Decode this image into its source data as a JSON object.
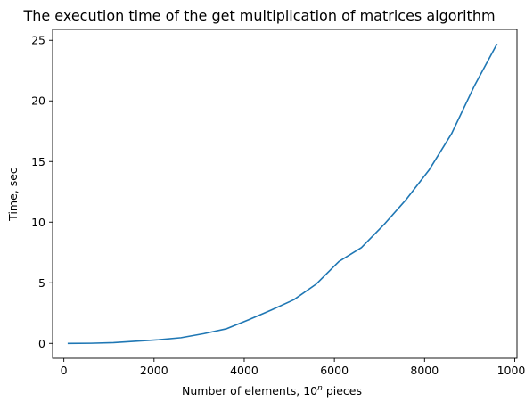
{
  "chart_data": {
    "type": "line",
    "title": "The execution time of the get multiplication of matrices algorithm",
    "xlabel_main": "Number of elements, 10",
    "xlabel_sup": "n",
    "xlabel_tail": " pieces",
    "ylabel": "Time, sec",
    "xlim": [
      -250,
      10050
    ],
    "ylim": [
      -1.23,
      25.9
    ],
    "xticks": [
      0,
      2000,
      4000,
      6000,
      8000,
      10000
    ],
    "yticks": [
      0,
      5,
      10,
      15,
      20,
      25
    ],
    "grid": false,
    "series": [
      {
        "color": "#1f77b4",
        "x": [
          100,
          600,
          1100,
          1600,
          2100,
          2600,
          3100,
          3600,
          4100,
          4600,
          5100,
          5600,
          6100,
          6600,
          7100,
          7600,
          8100,
          8600,
          9100,
          9600
        ],
        "y": [
          0.0,
          0.01,
          0.06,
          0.18,
          0.3,
          0.47,
          0.8,
          1.2,
          1.95,
          2.75,
          3.6,
          4.9,
          6.75,
          7.9,
          9.8,
          11.9,
          14.3,
          17.3,
          21.2,
          24.65
        ]
      }
    ]
  }
}
